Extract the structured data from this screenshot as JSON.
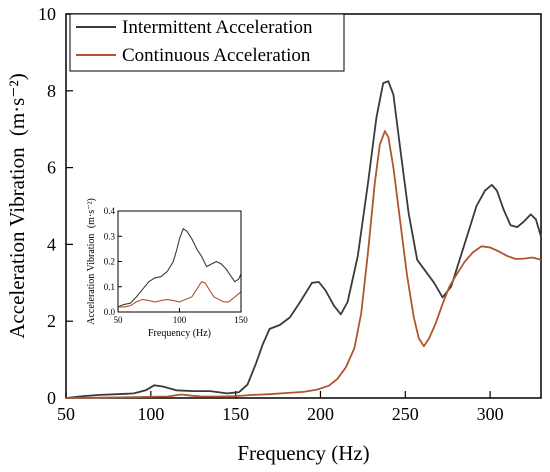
{
  "chart_data": [
    {
      "type": "line",
      "xlabel": "Frequency (Hz)",
      "ylabel": "Acceleration Vibration",
      "ylabel_unit": "(m·s⁻²)",
      "xlim": [
        50,
        330
      ],
      "ylim": [
        0,
        10
      ],
      "xticks": [
        50,
        100,
        150,
        200,
        250,
        300
      ],
      "yticks": [
        0,
        2,
        4,
        6,
        8,
        10
      ],
      "legend_position": "top-left",
      "grid": false,
      "series": [
        {
          "name": "Intermittent Acceleration",
          "color": "#3a3a3a",
          "points": [
            [
              50,
              0
            ],
            [
              60,
              0.05
            ],
            [
              70,
              0.08
            ],
            [
              80,
              0.1
            ],
            [
              90,
              0.12
            ],
            [
              97,
              0.2
            ],
            [
              102,
              0.33
            ],
            [
              107,
              0.3
            ],
            [
              115,
              0.2
            ],
            [
              125,
              0.18
            ],
            [
              135,
              0.18
            ],
            [
              145,
              0.12
            ],
            [
              152,
              0.15
            ],
            [
              157,
              0.35
            ],
            [
              162,
              0.9
            ],
            [
              166,
              1.4
            ],
            [
              170,
              1.8
            ],
            [
              176,
              1.9
            ],
            [
              182,
              2.1
            ],
            [
              188,
              2.5
            ],
            [
              195,
              3.0
            ],
            [
              199,
              3.02
            ],
            [
              203,
              2.8
            ],
            [
              208,
              2.4
            ],
            [
              212,
              2.18
            ],
            [
              216,
              2.5
            ],
            [
              222,
              3.7
            ],
            [
              228,
              5.6
            ],
            [
              233,
              7.3
            ],
            [
              237,
              8.2
            ],
            [
              240,
              8.25
            ],
            [
              243,
              7.9
            ],
            [
              247,
              6.5
            ],
            [
              252,
              4.8
            ],
            [
              257,
              3.6
            ],
            [
              262,
              3.3
            ],
            [
              267,
              3.0
            ],
            [
              272,
              2.62
            ],
            [
              277,
              2.9
            ],
            [
              282,
              3.6
            ],
            [
              287,
              4.3
            ],
            [
              292,
              5.0
            ],
            [
              297,
              5.4
            ],
            [
              301,
              5.55
            ],
            [
              304,
              5.4
            ],
            [
              308,
              4.9
            ],
            [
              312,
              4.5
            ],
            [
              316,
              4.45
            ],
            [
              320,
              4.6
            ],
            [
              324,
              4.78
            ],
            [
              327,
              4.65
            ],
            [
              330,
              4.2
            ]
          ]
        },
        {
          "name": "Continuous Acceleration",
          "color": "#b0552f",
          "points": [
            [
              50,
              0
            ],
            [
              70,
              0.01
            ],
            [
              90,
              0.02
            ],
            [
              110,
              0.04
            ],
            [
              118,
              0.09
            ],
            [
              124,
              0.06
            ],
            [
              130,
              0.04
            ],
            [
              140,
              0.04
            ],
            [
              150,
              0.05
            ],
            [
              160,
              0.08
            ],
            [
              170,
              0.1
            ],
            [
              180,
              0.13
            ],
            [
              190,
              0.16
            ],
            [
              198,
              0.22
            ],
            [
              205,
              0.32
            ],
            [
              210,
              0.5
            ],
            [
              215,
              0.8
            ],
            [
              220,
              1.3
            ],
            [
              224,
              2.2
            ],
            [
              228,
              3.8
            ],
            [
              232,
              5.6
            ],
            [
              235,
              6.6
            ],
            [
              238,
              6.95
            ],
            [
              240,
              6.8
            ],
            [
              243,
              6.0
            ],
            [
              247,
              4.6
            ],
            [
              251,
              3.2
            ],
            [
              255,
              2.1
            ],
            [
              258,
              1.55
            ],
            [
              261,
              1.35
            ],
            [
              264,
              1.55
            ],
            [
              268,
              1.95
            ],
            [
              272,
              2.45
            ],
            [
              276,
              2.9
            ],
            [
              280,
              3.2
            ],
            [
              285,
              3.55
            ],
            [
              290,
              3.8
            ],
            [
              295,
              3.95
            ],
            [
              300,
              3.92
            ],
            [
              305,
              3.82
            ],
            [
              310,
              3.7
            ],
            [
              315,
              3.62
            ],
            [
              320,
              3.63
            ],
            [
              325,
              3.66
            ],
            [
              330,
              3.6
            ]
          ]
        }
      ]
    },
    {
      "type": "line",
      "xlabel": "Frequency (Hz)",
      "ylabel": "Acceleration Vibration",
      "ylabel_unit": "(m·s⁻²)",
      "xlim": [
        50,
        150
      ],
      "ylim": [
        0,
        0.4
      ],
      "xticks": [
        50,
        100,
        150
      ],
      "yticks": [
        0.0,
        0.1,
        0.2,
        0.3,
        0.4
      ],
      "ytick_labels": [
        "0.0",
        "0.1",
        "0.2",
        "0.3",
        "0.4"
      ],
      "series": [
        {
          "name": "Intermittent Acceleration",
          "color": "#3a3a3a",
          "points": [
            [
              50,
              0.02
            ],
            [
              55,
              0.03
            ],
            [
              60,
              0.035
            ],
            [
              65,
              0.06
            ],
            [
              70,
              0.09
            ],
            [
              75,
              0.12
            ],
            [
              80,
              0.135
            ],
            [
              85,
              0.14
            ],
            [
              90,
              0.16
            ],
            [
              95,
              0.2
            ],
            [
              98,
              0.25
            ],
            [
              100,
              0.29
            ],
            [
              103,
              0.33
            ],
            [
              106,
              0.32
            ],
            [
              110,
              0.29
            ],
            [
              114,
              0.25
            ],
            [
              118,
              0.22
            ],
            [
              122,
              0.18
            ],
            [
              126,
              0.19
            ],
            [
              130,
              0.2
            ],
            [
              134,
              0.19
            ],
            [
              138,
              0.17
            ],
            [
              142,
              0.14
            ],
            [
              145,
              0.12
            ],
            [
              148,
              0.13
            ],
            [
              150,
              0.15
            ]
          ]
        },
        {
          "name": "Continuous Acceleration",
          "color": "#b0552f",
          "points": [
            [
              50,
              0.02
            ],
            [
              55,
              0.02
            ],
            [
              60,
              0.025
            ],
            [
              65,
              0.04
            ],
            [
              70,
              0.05
            ],
            [
              75,
              0.045
            ],
            [
              80,
              0.04
            ],
            [
              85,
              0.045
            ],
            [
              90,
              0.05
            ],
            [
              95,
              0.045
            ],
            [
              100,
              0.04
            ],
            [
              105,
              0.05
            ],
            [
              110,
              0.06
            ],
            [
              114,
              0.09
            ],
            [
              118,
              0.12
            ],
            [
              121,
              0.115
            ],
            [
              124,
              0.09
            ],
            [
              128,
              0.06
            ],
            [
              132,
              0.05
            ],
            [
              136,
              0.04
            ],
            [
              140,
              0.04
            ],
            [
              145,
              0.06
            ],
            [
              150,
              0.08
            ]
          ]
        }
      ]
    }
  ]
}
